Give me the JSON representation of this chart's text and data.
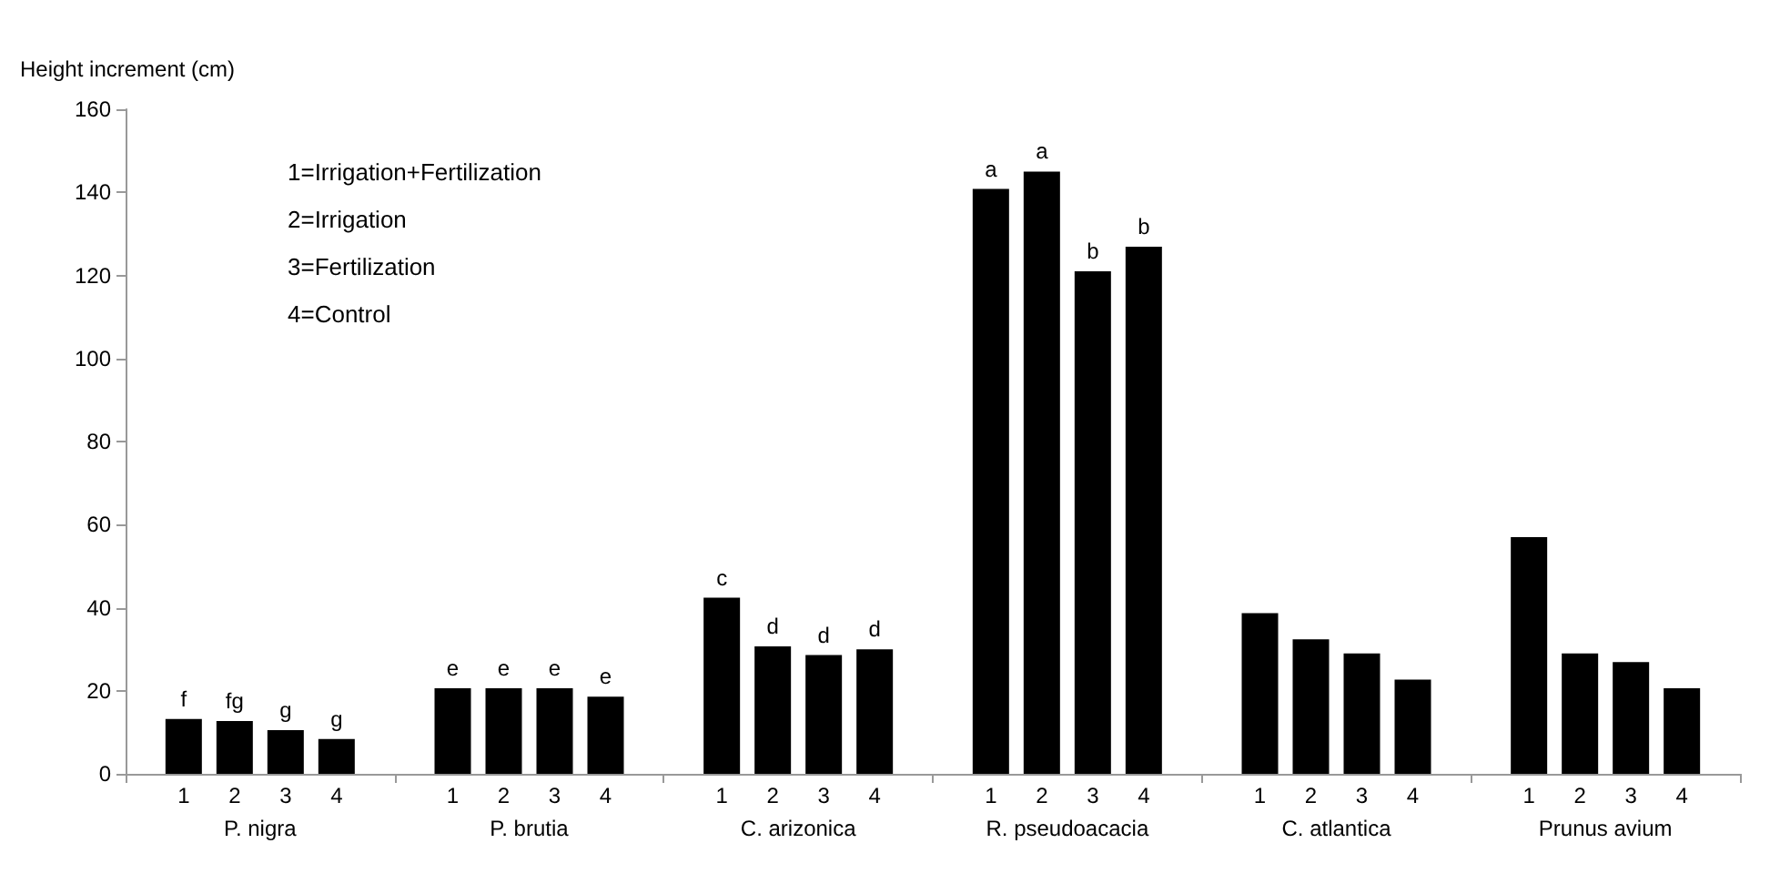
{
  "chart_data": {
    "type": "bar",
    "ylabel": "Height increment (cm)",
    "categories": [
      "P. nigra",
      "P. brutia",
      "C. arizonica",
      "R. pseudoacacia",
      "C. atlantica",
      "Prunus avium"
    ],
    "series": [
      {
        "name": "1",
        "color": "#000000",
        "values": [
          13.2,
          20.6,
          42.4,
          140.8,
          38.7,
          57
        ],
        "value_labels": [
          "f",
          "e",
          "c",
          "a",
          null,
          null
        ]
      },
      {
        "name": "2",
        "color": "#000000",
        "values": [
          12.7,
          20.6,
          30.7,
          145,
          32.4,
          29
        ],
        "value_labels": [
          "fg",
          "e",
          "d",
          "a",
          null,
          null
        ]
      },
      {
        "name": "3",
        "color": "#000000",
        "values": [
          10.5,
          20.6,
          28.6,
          121,
          29,
          26.9
        ],
        "value_labels": [
          "g",
          "e",
          "d",
          "b",
          null,
          null
        ]
      },
      {
        "name": "4",
        "color": "#000000",
        "values": [
          8.4,
          18.6,
          30,
          126.9,
          22.7,
          20.6
        ],
        "value_labels": [
          "g",
          "e",
          "d",
          "b",
          null,
          null
        ]
      }
    ],
    "annotations": [
      "1=Irrigation+Fertilization",
      "2=Irrigation",
      "3=Fertilization",
      "4=Control"
    ],
    "ylim": [
      0,
      160
    ],
    "yticks": [
      0,
      20,
      40,
      60,
      80,
      100,
      120,
      140,
      160
    ],
    "grid": false
  }
}
